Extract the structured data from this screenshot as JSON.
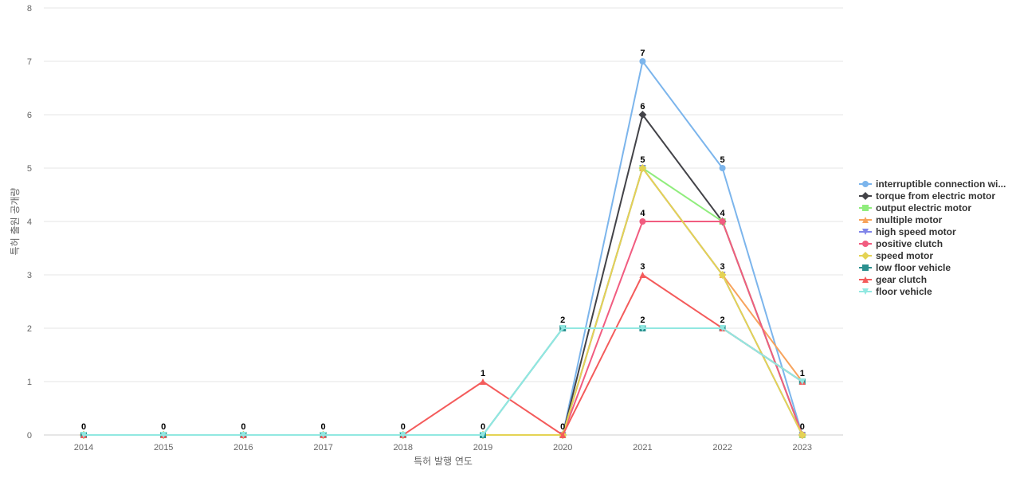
{
  "chart_data": {
    "type": "line",
    "xlabel": "특허 발행 연도",
    "ylabel": "특허 출원 공개량",
    "x": [
      "2014",
      "2015",
      "2016",
      "2017",
      "2018",
      "2019",
      "2020",
      "2021",
      "2022",
      "2023"
    ],
    "ylim": [
      0,
      8
    ],
    "yticks": [
      "0",
      "1",
      "2",
      "3",
      "4",
      "5",
      "6",
      "7",
      "8"
    ],
    "grid": true,
    "legend_position": "right",
    "series": [
      {
        "name": "interruptible connection wi...",
        "color": "#7cb5ec",
        "marker": "circle",
        "values": [
          0,
          0,
          0,
          0,
          0,
          0,
          0,
          7,
          5,
          0
        ]
      },
      {
        "name": "torque from electric motor",
        "color": "#434348",
        "marker": "diamond",
        "values": [
          0,
          0,
          0,
          0,
          0,
          0,
          0,
          6,
          4,
          0
        ]
      },
      {
        "name": "output electric motor",
        "color": "#90ed7d",
        "marker": "square",
        "values": [
          0,
          0,
          0,
          0,
          0,
          0,
          0,
          5,
          4,
          0
        ]
      },
      {
        "name": "multiple motor",
        "color": "#f7a35c",
        "marker": "triangle",
        "values": [
          0,
          0,
          0,
          0,
          0,
          0,
          0,
          5,
          3,
          1
        ]
      },
      {
        "name": "high speed motor",
        "color": "#8085e9",
        "marker": "triangle-down",
        "values": [
          0,
          0,
          0,
          0,
          0,
          0,
          0,
          5,
          3,
          0
        ]
      },
      {
        "name": "positive clutch",
        "color": "#f15c80",
        "marker": "circle",
        "values": [
          0,
          0,
          0,
          0,
          0,
          0,
          0,
          4,
          4,
          0
        ]
      },
      {
        "name": "speed motor",
        "color": "#e4d354",
        "marker": "diamond",
        "values": [
          0,
          0,
          0,
          0,
          0,
          0,
          0,
          5,
          3,
          0
        ]
      },
      {
        "name": "low floor vehicle",
        "color": "#2b908f",
        "marker": "square",
        "values": [
          0,
          0,
          0,
          0,
          0,
          0,
          2,
          2,
          2,
          1
        ]
      },
      {
        "name": "gear clutch",
        "color": "#f45b5b",
        "marker": "triangle",
        "values": [
          0,
          0,
          0,
          0,
          0,
          1,
          0,
          3,
          2,
          1
        ]
      },
      {
        "name": "floor vehicle",
        "color": "#91e8e1",
        "marker": "triangle-down",
        "values": [
          0,
          0,
          0,
          0,
          0,
          0,
          2,
          2,
          2,
          1
        ]
      }
    ],
    "data_labels": [
      {
        "x": "2014",
        "text": "0"
      },
      {
        "x": "2015",
        "text": "0"
      },
      {
        "x": "2016",
        "text": "0"
      },
      {
        "x": "2017",
        "text": "0"
      },
      {
        "x": "2018",
        "text": "0"
      },
      {
        "x": "2019",
        "text": "0"
      },
      {
        "x": "2019",
        "y": 1,
        "text": "1"
      },
      {
        "x": "2020",
        "y": 0,
        "text": "0"
      },
      {
        "x": "2020",
        "y": 2,
        "text": "2"
      },
      {
        "x": "2021",
        "y": 7,
        "text": "7"
      },
      {
        "x": "2021",
        "y": 6,
        "text": "6"
      },
      {
        "x": "2021",
        "y": 5,
        "text": "5"
      },
      {
        "x": "2021",
        "y": 4,
        "text": "4"
      },
      {
        "x": "2021",
        "y": 3,
        "text": "3"
      },
      {
        "x": "2021",
        "y": 2,
        "text": "2"
      },
      {
        "x": "2022",
        "y": 5,
        "text": "5"
      },
      {
        "x": "2022",
        "y": 4,
        "text": "4"
      },
      {
        "x": "2022",
        "y": 3,
        "text": "3"
      },
      {
        "x": "2022",
        "y": 2,
        "text": "2"
      },
      {
        "x": "2023",
        "y": 1,
        "text": "1"
      },
      {
        "x": "2023",
        "y": 0,
        "text": "0"
      }
    ]
  }
}
